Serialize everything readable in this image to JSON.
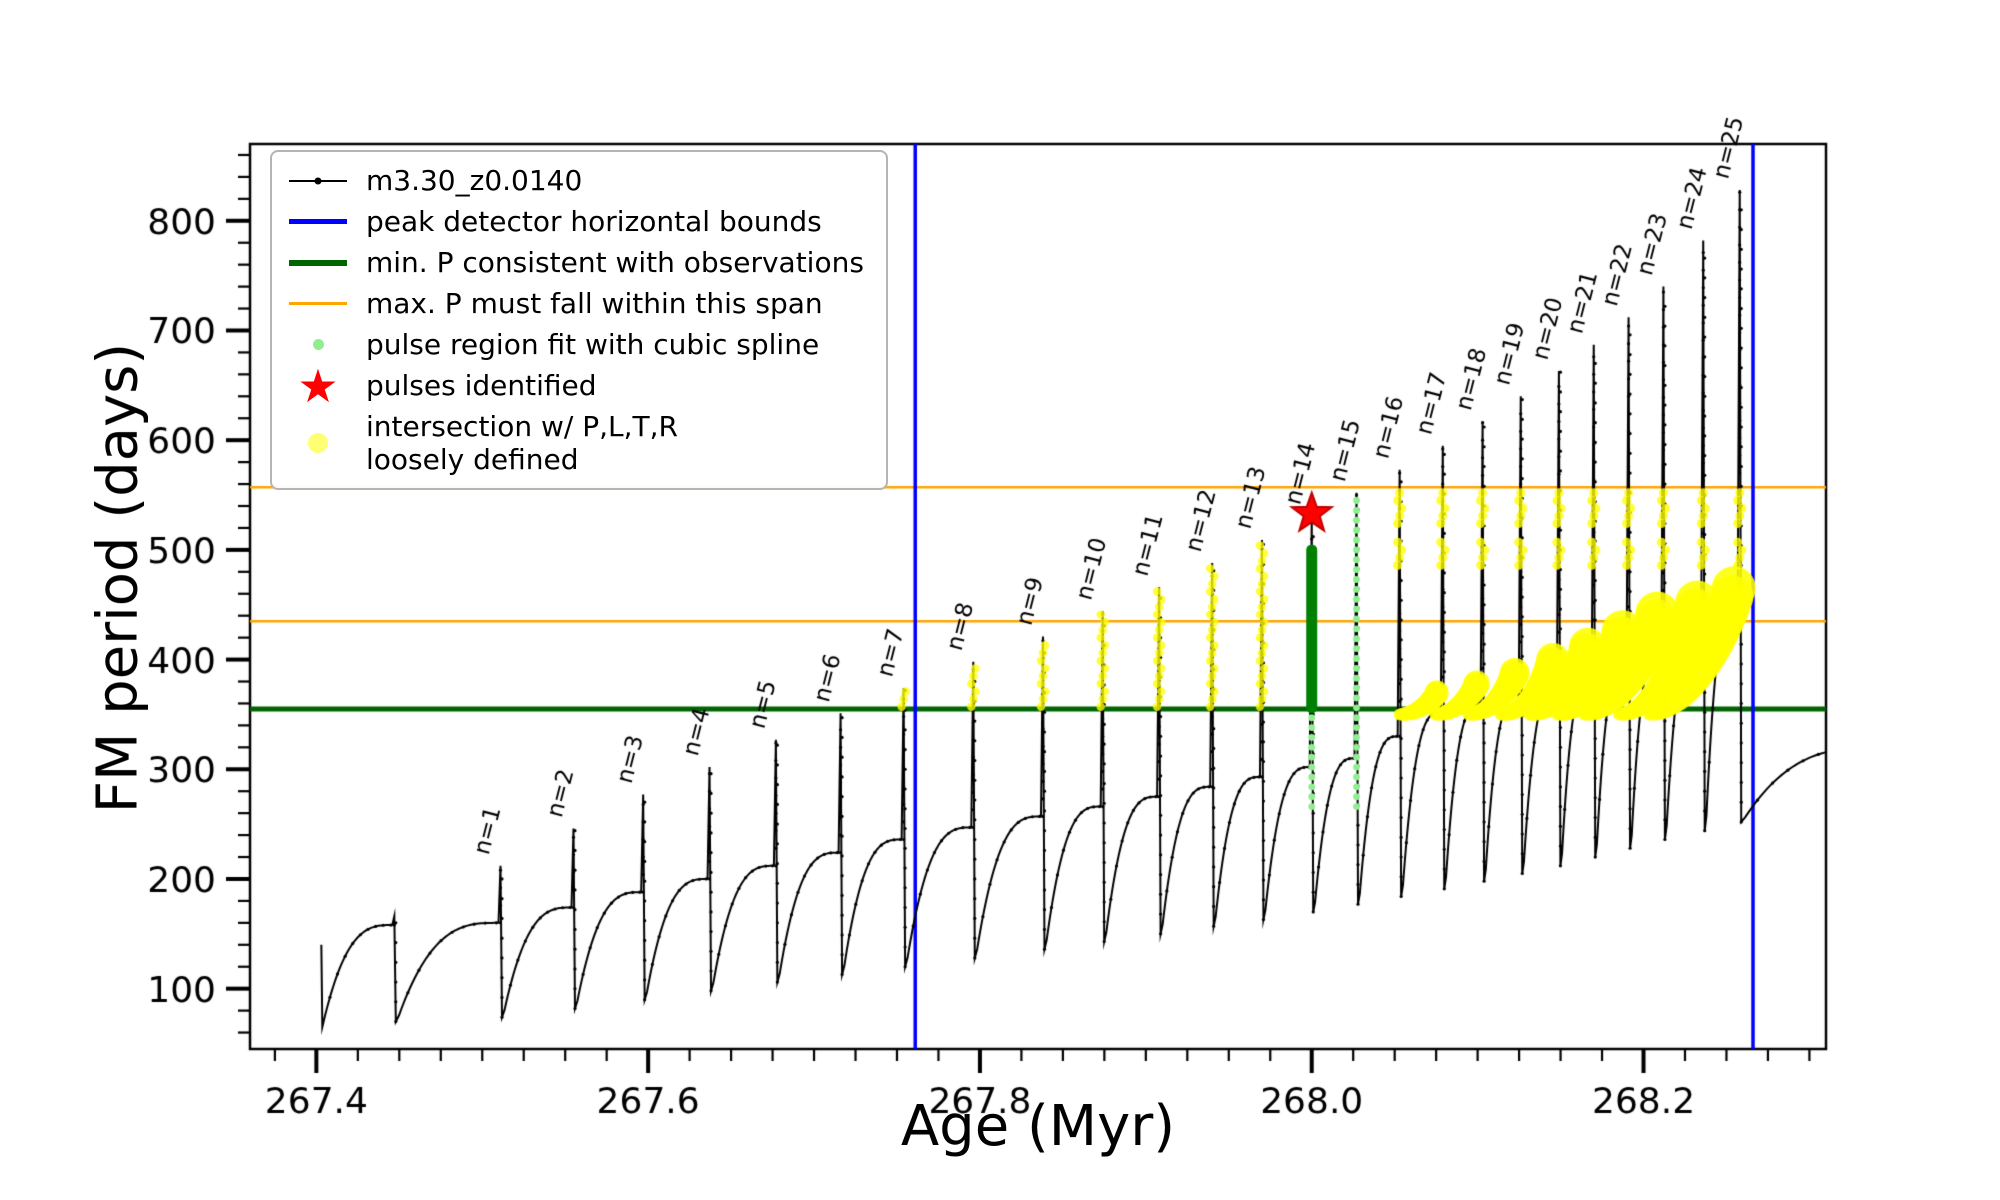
{
  "chart_data": {
    "type": "line",
    "title": "",
    "axes": {
      "xlabel": "Age (Myr)",
      "ylabel": "FM period (days)",
      "xlim": [
        267.36,
        268.31
      ],
      "ylim": [
        45,
        870
      ],
      "xticks": {
        "major": [
          267.4,
          267.6,
          267.8,
          268.0,
          268.2
        ],
        "labels": [
          "267.4",
          "267.6",
          "267.8",
          "268.0",
          "268.2"
        ],
        "minor_step": 0.025
      },
      "yticks": {
        "major": [
          100,
          200,
          300,
          400,
          500,
          600,
          700,
          800
        ],
        "labels": [
          "100",
          "200",
          "300",
          "400",
          "500",
          "600",
          "700",
          "800"
        ],
        "minor_step": 20
      },
      "grid": false
    },
    "legend": {
      "position": "upper-left",
      "items": [
        {
          "name": "series",
          "swatch": "line-dot",
          "color": "#000000",
          "label": "m3.30_z0.0140"
        },
        {
          "name": "peak-bounds",
          "swatch": "line",
          "color": "#0000ff",
          "label": "peak detector horizontal bounds"
        },
        {
          "name": "min-p",
          "swatch": "line",
          "color": "#006400",
          "label": "min. P consistent with observations"
        },
        {
          "name": "max-p-span",
          "swatch": "line",
          "color": "#ffa500",
          "label": "max. P must fall within this span"
        },
        {
          "name": "spline-fit",
          "swatch": "dot",
          "color": "#90ee90",
          "label": "pulse region fit with cubic spline"
        },
        {
          "name": "pulses",
          "swatch": "star",
          "color": "#ff0000",
          "glyph": "★",
          "label": "pulses identified"
        },
        {
          "name": "intersection",
          "swatch": "dot",
          "color": "#ffff00",
          "label": "intersection w/ P,L,T,R\nloosely defined"
        }
      ]
    },
    "colors": {
      "series": "#000000",
      "bounds": "#0000ff",
      "min_p": "#006400",
      "max_p_span": "#ffa500",
      "spline_fit_light": "#90ee90",
      "spline_fit_dark": "#008000",
      "pulse_star": "#ff0000",
      "intersection": "#ffff00"
    },
    "hlines": [
      {
        "name": "min-p-line",
        "y": 355,
        "color": "#006400",
        "width": 5
      },
      {
        "name": "max-p-span-lower",
        "y": 435,
        "color": "#ffa500",
        "width": 2.5
      },
      {
        "name": "max-p-span-upper",
        "y": 557,
        "color": "#ffa500",
        "width": 2.5
      }
    ],
    "vlines": [
      {
        "name": "peak-bound-left",
        "x": 267.761,
        "color": "#0000ff",
        "width": 3.5
      },
      {
        "name": "peak-bound-right",
        "x": 268.266,
        "color": "#0000ff",
        "width": 3.5
      }
    ],
    "series_name": "m3.30_z0.0140",
    "start": {
      "x": 267.403,
      "y_top": 140,
      "y_min": 65
    },
    "tail": {
      "shoulder": 320,
      "x_spike_virtual": 268.345
    },
    "teeth": [
      {
        "n": 0,
        "label": "",
        "x": 267.447,
        "peak": 166,
        "shoulder": 158,
        "min_after": 70
      },
      {
        "n": 1,
        "label": "n=1",
        "x": 267.511,
        "peak": 212,
        "shoulder": 160,
        "min_after": 74
      },
      {
        "n": 2,
        "label": "n=2",
        "x": 267.555,
        "peak": 246,
        "shoulder": 174,
        "min_after": 82
      },
      {
        "n": 3,
        "label": "n=3",
        "x": 267.597,
        "peak": 277,
        "shoulder": 188,
        "min_after": 90
      },
      {
        "n": 4,
        "label": "n=4",
        "x": 267.637,
        "peak": 302,
        "shoulder": 200,
        "min_after": 98
      },
      {
        "n": 5,
        "label": "n=5",
        "x": 267.677,
        "peak": 327,
        "shoulder": 212,
        "min_after": 106
      },
      {
        "n": 6,
        "label": "n=6",
        "x": 267.716,
        "peak": 351,
        "shoulder": 224,
        "min_after": 113
      },
      {
        "n": 7,
        "label": "n=7",
        "x": 267.754,
        "peak": 374,
        "shoulder": 236,
        "min_after": 120
      },
      {
        "n": 8,
        "label": "n=8",
        "x": 267.796,
        "peak": 398,
        "shoulder": 247,
        "min_after": 128
      },
      {
        "n": 9,
        "label": "n=9",
        "x": 267.838,
        "peak": 421,
        "shoulder": 257,
        "min_after": 136
      },
      {
        "n": 10,
        "label": "n=10",
        "x": 267.874,
        "peak": 444,
        "shoulder": 266,
        "min_after": 143
      },
      {
        "n": 11,
        "label": "n=11",
        "x": 267.908,
        "peak": 466,
        "shoulder": 275,
        "min_after": 150
      },
      {
        "n": 12,
        "label": "n=12",
        "x": 267.94,
        "peak": 488,
        "shoulder": 284,
        "min_after": 157
      },
      {
        "n": 13,
        "label": "n=13",
        "x": 267.97,
        "peak": 509,
        "shoulder": 293,
        "min_after": 163
      },
      {
        "n": 14,
        "label": "n=14",
        "x": 268.0,
        "peak": 531,
        "shoulder": 302,
        "min_after": 170
      },
      {
        "n": 15,
        "label": "n=15",
        "x": 268.027,
        "peak": 552,
        "shoulder": 310,
        "min_after": 177
      },
      {
        "n": 16,
        "label": "n=16",
        "x": 268.053,
        "peak": 573,
        "shoulder": 330,
        "min_after": 184
      },
      {
        "n": 17,
        "label": "n=17",
        "x": 268.079,
        "peak": 595,
        "shoulder": 352,
        "min_after": 191
      },
      {
        "n": 18,
        "label": "n=18",
        "x": 268.103,
        "peak": 617,
        "shoulder": 360,
        "min_after": 198
      },
      {
        "n": 19,
        "label": "n=19",
        "x": 268.126,
        "peak": 640,
        "shoulder": 368,
        "min_after": 205
      },
      {
        "n": 20,
        "label": "n=20",
        "x": 268.149,
        "peak": 663,
        "shoulder": 377,
        "min_after": 212
      },
      {
        "n": 21,
        "label": "n=21",
        "x": 268.17,
        "peak": 687,
        "shoulder": 388,
        "min_after": 220
      },
      {
        "n": 22,
        "label": "n=22",
        "x": 268.191,
        "peak": 712,
        "shoulder": 400,
        "min_after": 228
      },
      {
        "n": 23,
        "label": "n=23",
        "x": 268.212,
        "peak": 740,
        "shoulder": 415,
        "min_after": 236
      },
      {
        "n": 24,
        "label": "n=24",
        "x": 268.236,
        "peak": 782,
        "shoulder": 435,
        "min_after": 244
      },
      {
        "n": 25,
        "label": "n=25",
        "x": 268.258,
        "peak": 828,
        "shoulder": 458,
        "min_after": 252
      }
    ],
    "pulse_star": {
      "x": 268.0,
      "y": 533,
      "color": "#ff0000",
      "edge": "#c00000"
    },
    "spline_fit": {
      "dark_column": {
        "x": 268.0,
        "y0": 356,
        "y1": 500,
        "color": "#008000"
      },
      "light_dots": [
        {
          "x": 268.0,
          "y0": 266,
          "y1": 352
        },
        {
          "x": 268.027,
          "y0": 266,
          "y1": 548
        }
      ],
      "light_color": "#90ee90"
    },
    "yellow": {
      "color": "#ffff00",
      "columns": [
        {
          "x": 267.754,
          "y0": 357,
          "y1": 371
        },
        {
          "x": 267.796,
          "y0": 357,
          "y1": 395
        },
        {
          "x": 267.838,
          "y0": 357,
          "y1": 418
        },
        {
          "x": 267.874,
          "y0": 357,
          "y1": 441
        },
        {
          "x": 267.908,
          "y0": 357,
          "y1": 463
        },
        {
          "x": 267.94,
          "y0": 357,
          "y1": 485
        },
        {
          "x": 267.97,
          "y0": 357,
          "y1": 506
        }
      ],
      "bands": [
        {
          "x": 268.053,
          "segments": [
            [
              486,
              512
            ],
            [
              524,
              552
            ]
          ]
        },
        {
          "x": 268.079,
          "segments": [
            [
              486,
              512
            ],
            [
              524,
              552
            ]
          ]
        },
        {
          "x": 268.103,
          "segments": [
            [
              486,
              512
            ],
            [
              524,
              552
            ]
          ]
        },
        {
          "x": 268.126,
          "segments": [
            [
              486,
              512
            ],
            [
              524,
              552
            ]
          ]
        },
        {
          "x": 268.149,
          "segments": [
            [
              486,
              512
            ],
            [
              524,
              552
            ]
          ]
        },
        {
          "x": 268.17,
          "segments": [
            [
              486,
              512
            ],
            [
              524,
              552
            ]
          ]
        },
        {
          "x": 268.191,
          "segments": [
            [
              486,
              512
            ],
            [
              524,
              552
            ]
          ]
        },
        {
          "x": 268.212,
          "segments": [
            [
              486,
              512
            ],
            [
              524,
              552
            ]
          ]
        },
        {
          "x": 268.236,
          "segments": [
            [
              486,
              512
            ],
            [
              524,
              552
            ]
          ]
        },
        {
          "x": 268.258,
          "segments": [
            [
              486,
              512
            ],
            [
              524,
              552
            ]
          ]
        }
      ],
      "blobs": [
        {
          "x": 268.079,
          "top": 370
        },
        {
          "x": 268.103,
          "top": 378
        },
        {
          "x": 268.126,
          "top": 388
        },
        {
          "x": 268.149,
          "top": 400
        },
        {
          "x": 268.17,
          "top": 412
        },
        {
          "x": 268.191,
          "top": 426
        },
        {
          "x": 268.212,
          "top": 442
        },
        {
          "x": 268.236,
          "top": 452
        },
        {
          "x": 268.258,
          "top": 465
        }
      ]
    }
  }
}
